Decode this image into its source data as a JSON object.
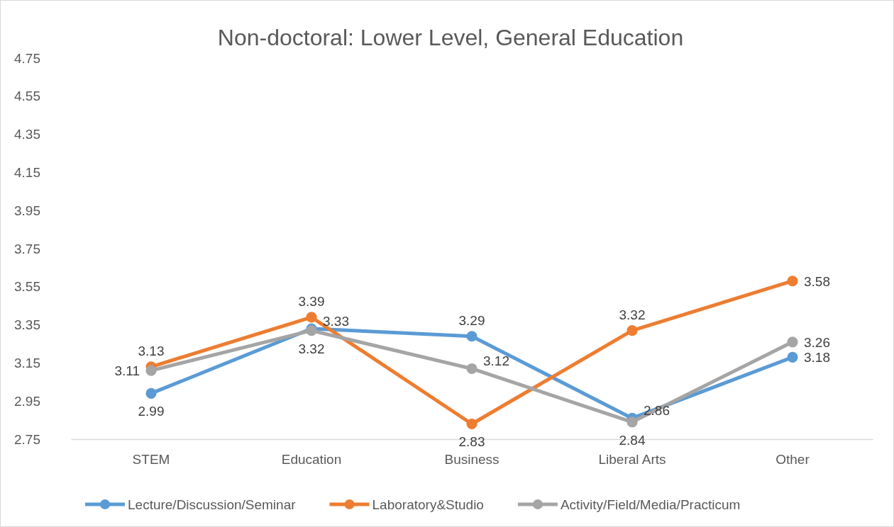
{
  "chart_data": {
    "type": "line",
    "title": "Non-doctoral: Lower Level, General Education",
    "categories": [
      "STEM",
      "Education",
      "Business",
      "Liberal Arts",
      "Other"
    ],
    "series": [
      {
        "name": "Lecture/Discussion/Seminar",
        "color": "#5b9bd5",
        "values": [
          2.99,
          3.33,
          3.29,
          2.86,
          3.18
        ]
      },
      {
        "name": "Laboratory&Studio",
        "color": "#ed7d31",
        "values": [
          3.13,
          3.39,
          2.83,
          3.32,
          3.58
        ]
      },
      {
        "name": "Activity/Field/Media/Practicum",
        "color": "#a5a5a5",
        "values": [
          3.11,
          3.32,
          3.12,
          2.84,
          3.26
        ]
      }
    ],
    "ylim": [
      2.75,
      4.75
    ],
    "yticks": [
      2.75,
      2.95,
      3.15,
      3.35,
      3.55,
      3.75,
      3.95,
      4.15,
      4.35,
      4.55,
      4.75
    ],
    "data_labels": true,
    "legend": "bottom",
    "marker": "circle",
    "line_style": "solid",
    "grid": false
  }
}
